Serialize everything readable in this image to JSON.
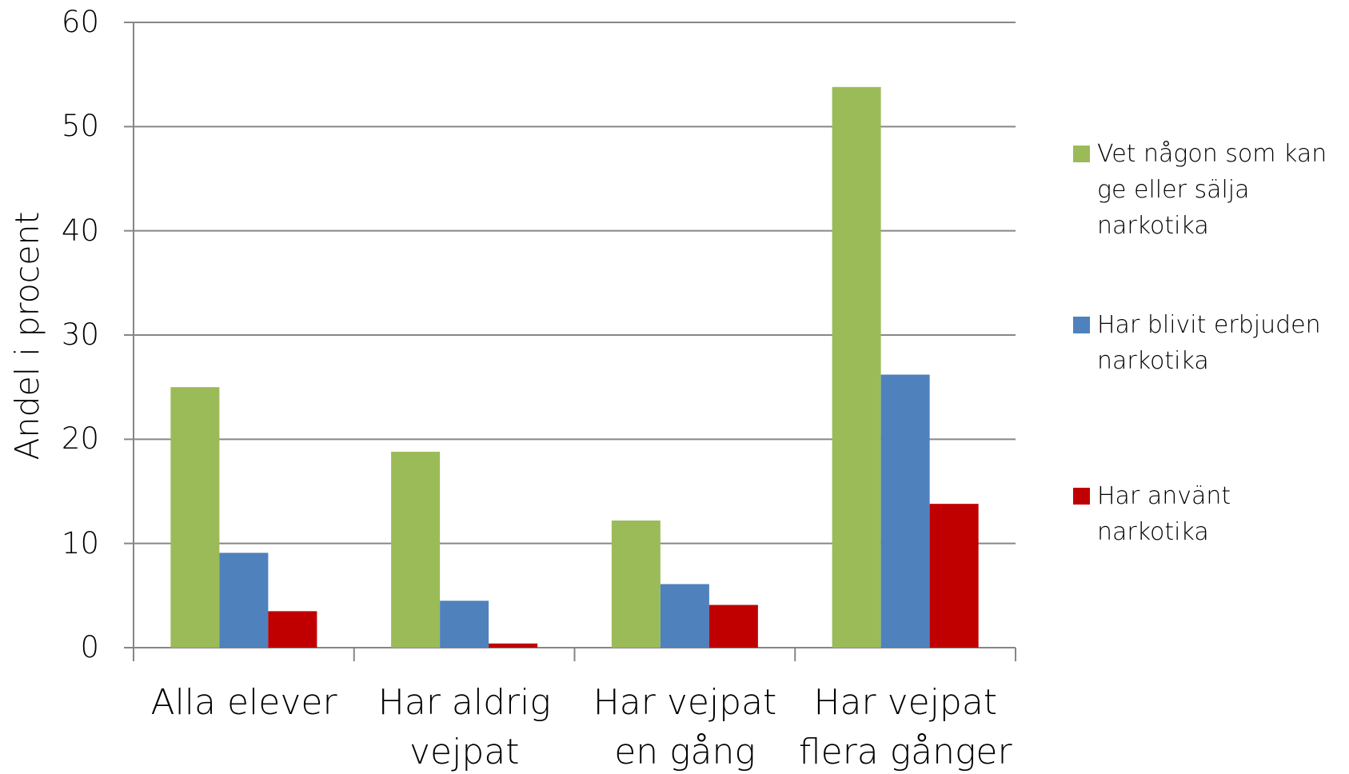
{
  "chart_data": {
    "type": "bar",
    "y_label": "Andel i procent",
    "categories": [
      "Alla elever",
      "Har aldrig vejpat",
      "Har vejpat en gång",
      "Har vejpat flera gånger"
    ],
    "series": [
      {
        "name": "Vet någon som kan ge eller sälja narkotika",
        "color": "#9bbb59",
        "values": [
          25,
          18.8,
          12.2,
          53.8
        ]
      },
      {
        "name": "Har blivit erbjuden narkotika",
        "color": "#4f81bd",
        "values": [
          9.1,
          4.5,
          6.1,
          26.2
        ]
      },
      {
        "name": "Har använt narkotika",
        "color": "#c00000",
        "values": [
          3.5,
          0.4,
          4.1,
          13.8
        ]
      }
    ],
    "ylim": [
      0,
      60
    ],
    "yticks": [
      0,
      10,
      20,
      30,
      40,
      50,
      60
    ],
    "grid": true,
    "legend": "right"
  }
}
